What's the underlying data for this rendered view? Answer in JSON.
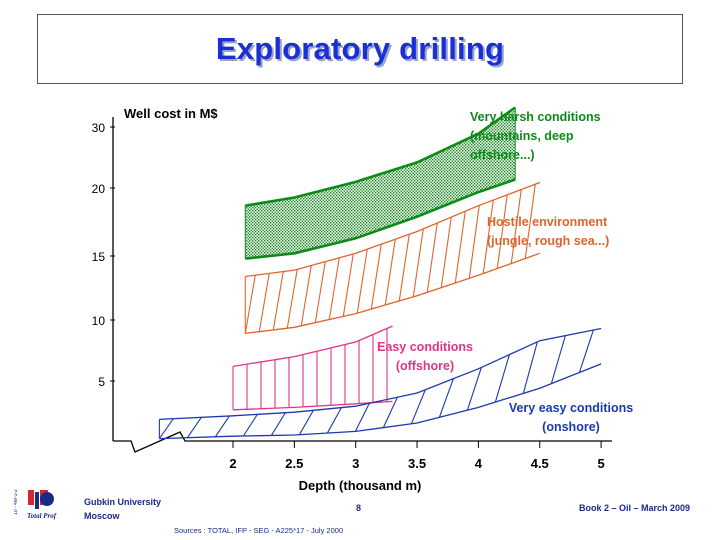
{
  "title": "Exploratory drilling",
  "colors": {
    "title": "#1a2fd6",
    "green": "#0d8a17",
    "orange": "#e0642a",
    "pink": "#e0348a",
    "blue": "#1a3aae",
    "axis": "#000000"
  },
  "chart_data": {
    "type": "area",
    "ylabel": "Well cost in M$",
    "xlabel": "Depth (thousand m)",
    "x_ticks": [
      "2",
      "2.5",
      "3",
      "3.5",
      "4",
      "4.5",
      "5"
    ],
    "y_ticks": [
      "5",
      "10",
      "15",
      "20",
      "30"
    ],
    "bands": [
      {
        "name": "Very harsh conditions",
        "label_lines": [
          "Very harsh conditions",
          "(mountains, deep",
          "offshore...)"
        ],
        "color": "green",
        "fill": "dots",
        "upper": [
          [
            2.1,
            18.7
          ],
          [
            2.5,
            19.3
          ],
          [
            3.0,
            21.0
          ],
          [
            3.5,
            24.2
          ],
          [
            4.0,
            28.9
          ],
          [
            4.3,
            33.2
          ]
        ],
        "lower": [
          [
            2.1,
            14.8
          ],
          [
            2.5,
            15.2
          ],
          [
            3.0,
            16.3
          ],
          [
            3.5,
            17.9
          ],
          [
            4.0,
            19.7
          ],
          [
            4.3,
            21.4
          ]
        ]
      },
      {
        "name": "Hostile environment",
        "label_lines": [
          "Hostile environment",
          "(jungle, rough sea...)"
        ],
        "color": "orange",
        "fill": "hatch",
        "upper": [
          [
            2.1,
            13.4
          ],
          [
            2.5,
            13.9
          ],
          [
            3.0,
            15.2
          ],
          [
            3.5,
            16.8
          ],
          [
            4.0,
            18.7
          ],
          [
            4.5,
            20.9
          ]
        ],
        "lower": [
          [
            2.1,
            8.9
          ],
          [
            2.5,
            9.4
          ],
          [
            3.0,
            10.5
          ],
          [
            3.5,
            11.9
          ],
          [
            4.0,
            13.5
          ],
          [
            4.5,
            15.2
          ]
        ]
      },
      {
        "name": "Easy conditions",
        "label_lines": [
          "Easy conditions",
          "(offshore)"
        ],
        "color": "pink",
        "fill": "verticals",
        "upper": [
          [
            2.0,
            6.2
          ],
          [
            2.5,
            7.0
          ],
          [
            3.0,
            8.2
          ],
          [
            3.3,
            9.5
          ]
        ],
        "lower": [
          [
            2.0,
            2.6
          ],
          [
            2.5,
            2.8
          ],
          [
            3.0,
            3.1
          ],
          [
            3.3,
            3.3
          ]
        ]
      },
      {
        "name": "Very easy conditions",
        "label_lines": [
          "Very easy conditions",
          "(onshore)"
        ],
        "color": "blue",
        "fill": "hatch",
        "upper": [
          [
            1.4,
            1.8
          ],
          [
            2.0,
            2.1
          ],
          [
            2.5,
            2.4
          ],
          [
            3.0,
            2.9
          ],
          [
            3.5,
            4.0
          ],
          [
            4.0,
            6.0
          ],
          [
            4.5,
            8.3
          ],
          [
            5.0,
            9.3
          ]
        ],
        "lower": [
          [
            1.4,
            0.2
          ],
          [
            2.0,
            0.4
          ],
          [
            2.5,
            0.5
          ],
          [
            3.0,
            0.8
          ],
          [
            3.5,
            1.5
          ],
          [
            4.0,
            2.8
          ],
          [
            4.5,
            4.4
          ],
          [
            5.0,
            6.4
          ]
        ]
      }
    ]
  },
  "footer": {
    "org_line1": "Gubkin University",
    "org_line2": "Moscow",
    "page": "8",
    "book": "Book 2 – Oil – March 2009",
    "sources": "Sources : TOTAL, IFP - SEG - A225*17 - July 2000",
    "logo_text": "Total Prof",
    "logo_side_text": "10 - 4M-1-2"
  }
}
